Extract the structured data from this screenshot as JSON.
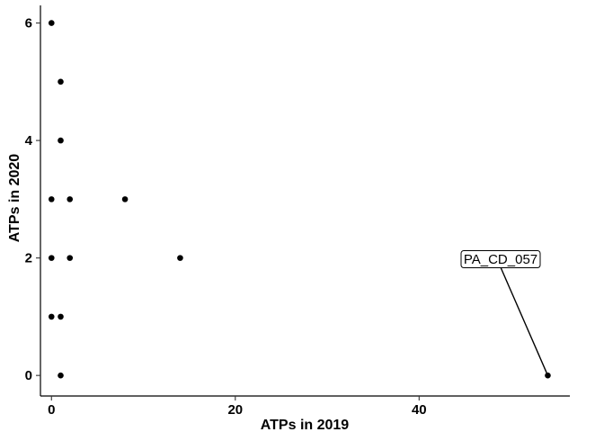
{
  "chart_data": {
    "type": "scatter",
    "title": "",
    "xlabel": "ATPs in 2019",
    "ylabel": "ATPs in 2020",
    "xlim": [
      -1.2,
      56.4
    ],
    "ylim": [
      -0.35,
      6.3
    ],
    "xticks": [
      0,
      20,
      40
    ],
    "yticks": [
      0,
      2,
      4,
      6
    ],
    "grid": false,
    "point_color": "#000000",
    "points": [
      {
        "x": 0,
        "y": 6
      },
      {
        "x": 1,
        "y": 5
      },
      {
        "x": 1,
        "y": 4
      },
      {
        "x": 0,
        "y": 3
      },
      {
        "x": 2,
        "y": 3
      },
      {
        "x": 8,
        "y": 3
      },
      {
        "x": 0,
        "y": 2
      },
      {
        "x": 2,
        "y": 2
      },
      {
        "x": 14,
        "y": 2
      },
      {
        "x": 0,
        "y": 1
      },
      {
        "x": 1,
        "y": 1
      },
      {
        "x": 1,
        "y": 0
      },
      {
        "x": 54,
        "y": 0
      }
    ],
    "annotations": [
      {
        "text": "PA_CD_057",
        "point": {
          "x": 54,
          "y": 0
        }
      }
    ]
  }
}
